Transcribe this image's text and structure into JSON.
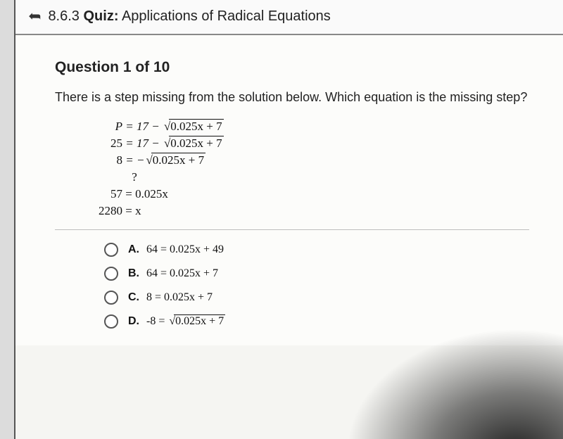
{
  "header": {
    "section": "8.6.3",
    "label": "Quiz:",
    "title": "Applications of Radical Equations"
  },
  "question": {
    "counter": "Question 1 of 10",
    "prompt": "There is a step missing from the solution below. Which equation is the missing step?"
  },
  "work": {
    "line1_left": "P",
    "line1_right_a": "= 17 − ",
    "line1_sqrt": "0.025x + 7",
    "line2_left": "25",
    "line2_right_a": "= 17 − ",
    "line2_sqrt": "0.025x + 7",
    "line3_left": "8",
    "line3_right_a": "= −",
    "line3_sqrt": "0.025x + 7",
    "line4": "?",
    "line5_left": "57",
    "line5_right": "= 0.025x",
    "line6_left": "2280",
    "line6_right": "= x"
  },
  "options": {
    "A": {
      "letter": "A.",
      "text": "64 = 0.025x + 49"
    },
    "B": {
      "letter": "B.",
      "text": "64 = 0.025x + 7"
    },
    "C": {
      "letter": "C.",
      "text": "8 = 0.025x + 7"
    },
    "D": {
      "letter": "D.",
      "text_prefix": "-8 = ",
      "sqrt": "0.025x + 7"
    }
  }
}
